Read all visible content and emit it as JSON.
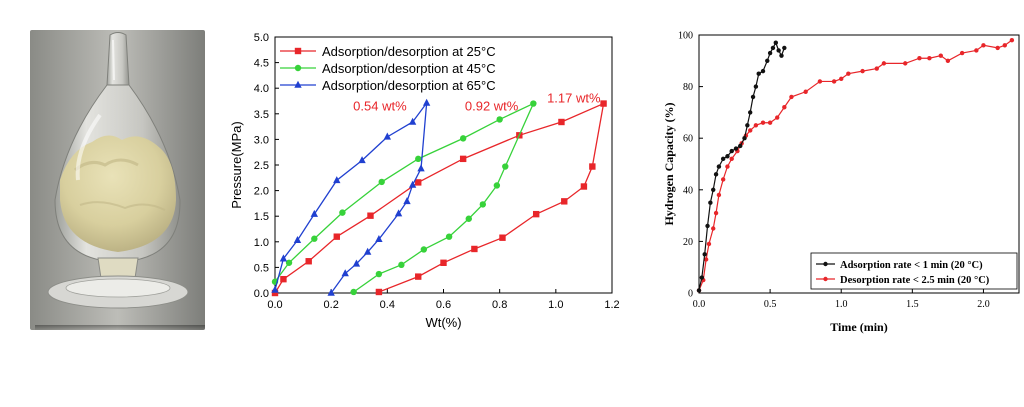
{
  "colors": {
    "red": "#e8262a",
    "green": "#37d23a",
    "blue": "#2040d0",
    "black": "#111111"
  },
  "chart_data": [
    {
      "type": "line",
      "xlabel": "Wt(%)",
      "ylabel": "Pressure(MPa)",
      "xlim": [
        0.0,
        1.2
      ],
      "ylim": [
        0.0,
        5.0
      ],
      "xticks": [
        "0.0",
        "0.2",
        "0.4",
        "0.6",
        "0.8",
        "1.0",
        "1.2"
      ],
      "yticks": [
        "0.0",
        "0.5",
        "1.0",
        "1.5",
        "2.0",
        "2.5",
        "3.0",
        "3.5",
        "4.0",
        "4.5",
        "5.0"
      ],
      "legend_position": "top-left",
      "series": [
        {
          "name": "Adsorption/desorption at 25°C",
          "color": "#e8262a",
          "marker": "square",
          "points": [
            [
              0.0,
              0.0
            ],
            [
              0.03,
              0.27
            ],
            [
              0.12,
              0.62
            ],
            [
              0.22,
              1.1
            ],
            [
              0.34,
              1.51
            ],
            [
              0.51,
              2.16
            ],
            [
              0.67,
              2.62
            ],
            [
              0.87,
              3.08
            ],
            [
              1.02,
              3.34
            ],
            [
              1.17,
              3.7
            ],
            [
              1.13,
              2.47
            ],
            [
              1.1,
              2.08
            ],
            [
              1.03,
              1.79
            ],
            [
              0.93,
              1.54
            ],
            [
              0.81,
              1.08
            ],
            [
              0.71,
              0.86
            ],
            [
              0.6,
              0.59
            ],
            [
              0.51,
              0.32
            ],
            [
              0.37,
              0.02
            ]
          ]
        },
        {
          "name": "Adsorption/desorption at 45°C",
          "color": "#37d23a",
          "marker": "circle",
          "points": [
            [
              0.0,
              0.22
            ],
            [
              0.05,
              0.59
            ],
            [
              0.14,
              1.06
            ],
            [
              0.24,
              1.57
            ],
            [
              0.38,
              2.17
            ],
            [
              0.51,
              2.62
            ],
            [
              0.67,
              3.02
            ],
            [
              0.8,
              3.39
            ],
            [
              0.92,
              3.7
            ],
            [
              0.82,
              2.47
            ],
            [
              0.79,
              2.1
            ],
            [
              0.74,
              1.73
            ],
            [
              0.69,
              1.45
            ],
            [
              0.62,
              1.1
            ],
            [
              0.53,
              0.85
            ],
            [
              0.45,
              0.55
            ],
            [
              0.37,
              0.37
            ],
            [
              0.28,
              0.02
            ]
          ]
        },
        {
          "name": "Adsorption/desorption at 65°C",
          "color": "#2040d0",
          "marker": "triangle",
          "points": [
            [
              0.0,
              0.06
            ],
            [
              0.03,
              0.67
            ],
            [
              0.08,
              1.03
            ],
            [
              0.14,
              1.54
            ],
            [
              0.22,
              2.2
            ],
            [
              0.31,
              2.59
            ],
            [
              0.4,
              3.05
            ],
            [
              0.49,
              3.34
            ],
            [
              0.54,
              3.71
            ],
            [
              0.52,
              2.43
            ],
            [
              0.49,
              2.11
            ],
            [
              0.47,
              1.79
            ],
            [
              0.44,
              1.55
            ],
            [
              0.37,
              1.05
            ],
            [
              0.33,
              0.8
            ],
            [
              0.29,
              0.57
            ],
            [
              0.25,
              0.38
            ],
            [
              0.2,
              0.0
            ]
          ]
        }
      ],
      "annotations": [
        {
          "text": "0.54 wt%",
          "color": "#e8262a"
        },
        {
          "text": "0.92 wt%",
          "color": "#e8262a"
        },
        {
          "text": "1.17 wt%",
          "color": "#e8262a"
        }
      ]
    },
    {
      "type": "line",
      "xlabel": "Time (min)",
      "ylabel": "Hydrogen Capacity (%)",
      "xlim": [
        0.0,
        2.25
      ],
      "ylim": [
        0,
        100
      ],
      "xticks": [
        "0.0",
        "0.5",
        "1.0",
        "1.5",
        "2.0"
      ],
      "yticks": [
        "0",
        "20",
        "40",
        "60",
        "80",
        "100"
      ],
      "legend_position": "bottom-right",
      "series": [
        {
          "name": "Adsorption rate < 1 min (20 °C)",
          "color": "#111111",
          "marker": "circle",
          "points": [
            [
              0.0,
              1
            ],
            [
              0.02,
              6
            ],
            [
              0.04,
              15
            ],
            [
              0.06,
              26
            ],
            [
              0.08,
              35
            ],
            [
              0.1,
              40
            ],
            [
              0.12,
              46
            ],
            [
              0.14,
              49
            ],
            [
              0.17,
              52
            ],
            [
              0.2,
              53
            ],
            [
              0.23,
              55
            ],
            [
              0.26,
              56
            ],
            [
              0.29,
              57
            ],
            [
              0.32,
              60
            ],
            [
              0.34,
              65
            ],
            [
              0.36,
              70
            ],
            [
              0.38,
              76
            ],
            [
              0.4,
              80
            ],
            [
              0.42,
              85
            ],
            [
              0.45,
              86
            ],
            [
              0.48,
              90
            ],
            [
              0.5,
              93
            ],
            [
              0.52,
              95
            ],
            [
              0.54,
              97
            ],
            [
              0.56,
              94
            ],
            [
              0.58,
              92
            ],
            [
              0.6,
              95
            ]
          ]
        },
        {
          "name": "Desorption rate < 2.5 min (20 °C)",
          "color": "#e8262a",
          "marker": "circle",
          "points": [
            [
              0.0,
              1
            ],
            [
              0.03,
              5
            ],
            [
              0.05,
              13
            ],
            [
              0.07,
              19
            ],
            [
              0.1,
              25
            ],
            [
              0.12,
              31
            ],
            [
              0.14,
              38
            ],
            [
              0.17,
              44
            ],
            [
              0.2,
              49
            ],
            [
              0.23,
              52
            ],
            [
              0.27,
              55
            ],
            [
              0.3,
              58
            ],
            [
              0.33,
              61
            ],
            [
              0.36,
              63
            ],
            [
              0.4,
              65
            ],
            [
              0.45,
              66
            ],
            [
              0.5,
              66
            ],
            [
              0.55,
              68
            ],
            [
              0.6,
              72
            ],
            [
              0.65,
              76
            ],
            [
              0.75,
              78
            ],
            [
              0.85,
              82
            ],
            [
              0.95,
              82
            ],
            [
              1.0,
              83
            ],
            [
              1.05,
              85
            ],
            [
              1.15,
              86
            ],
            [
              1.25,
              87
            ],
            [
              1.3,
              89
            ],
            [
              1.45,
              89
            ],
            [
              1.55,
              91
            ],
            [
              1.62,
              91
            ],
            [
              1.7,
              92
            ],
            [
              1.75,
              90
            ],
            [
              1.85,
              93
            ],
            [
              1.95,
              94
            ],
            [
              2.0,
              96
            ],
            [
              2.1,
              95
            ],
            [
              2.15,
              96
            ],
            [
              2.2,
              98
            ]
          ]
        }
      ]
    }
  ]
}
